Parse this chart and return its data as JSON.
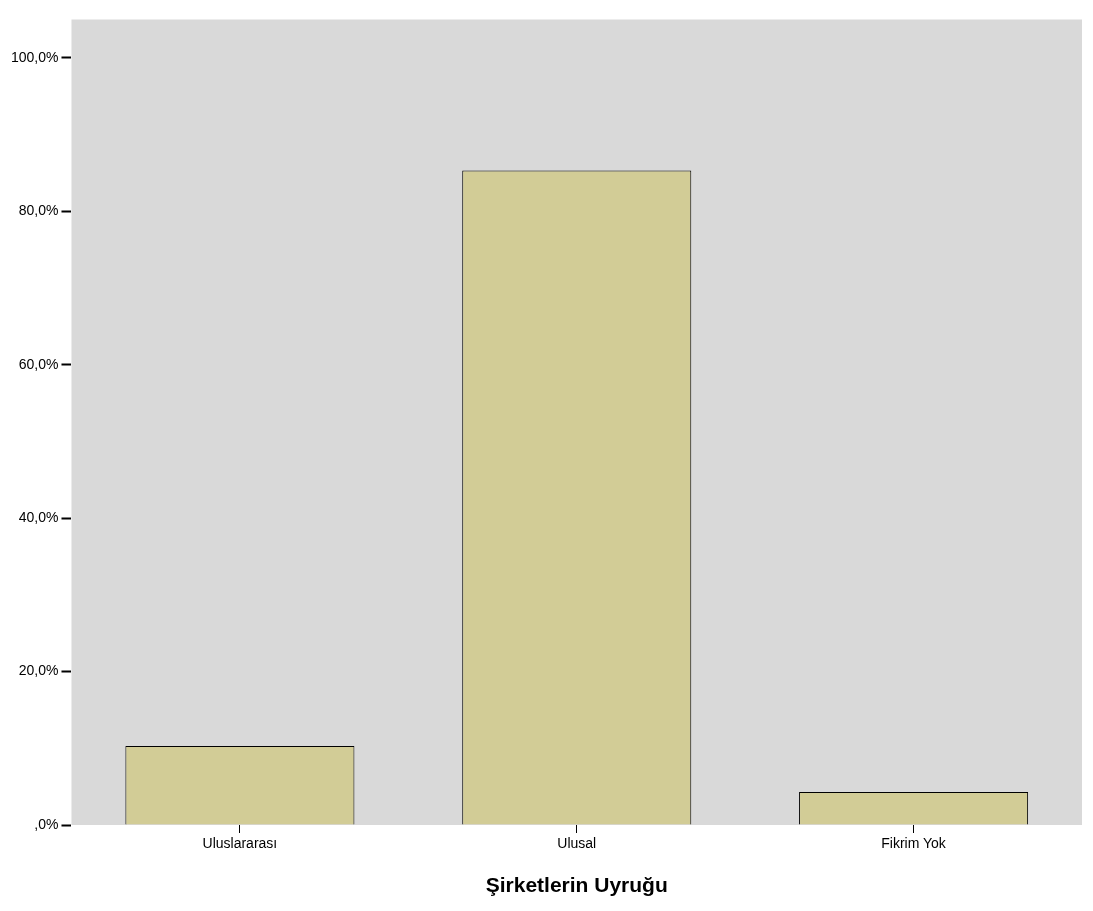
{
  "chart_data": {
    "type": "bar",
    "xlabel": "Şirketlerin Uyruğu",
    "categories": [
      "Uluslararası",
      "Ulusal",
      "Fikrim Yok"
    ],
    "values": [
      10.3,
      85.3,
      4.3
    ],
    "color": "#d2cc96",
    "ylim": [
      0,
      105
    ],
    "yticks": [
      {
        "value": 0,
        "label": ",0%"
      },
      {
        "value": 20,
        "label": "20,0%"
      },
      {
        "value": 40,
        "label": "40,0%"
      },
      {
        "value": 60,
        "label": "60,0%"
      },
      {
        "value": 80,
        "label": "80,0%"
      },
      {
        "value": 100,
        "label": "100,0%"
      }
    ],
    "grid": false,
    "legend": false
  }
}
